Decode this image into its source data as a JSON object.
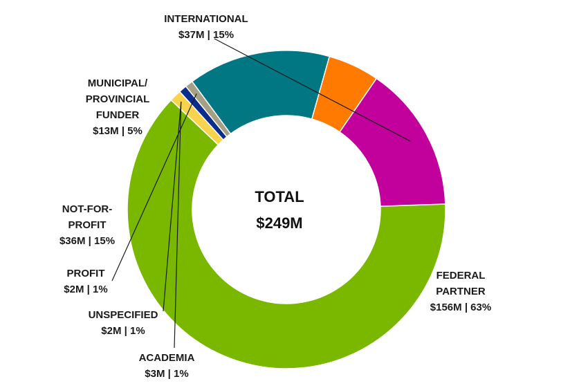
{
  "chart_data": {
    "type": "pie",
    "center_text": [
      "TOTAL",
      "$249M"
    ],
    "slices": [
      {
        "key": "federal",
        "label_lines": [
          "FEDERAL",
          "PARTNER"
        ],
        "value_text": "$156M | 63%",
        "value": 156,
        "color": "#7ab800"
      },
      {
        "key": "academia",
        "label_lines": [
          "ACADEMIA"
        ],
        "value_text": "$3M | 1%",
        "value": 3,
        "color": "#f7d44c"
      },
      {
        "key": "unspecified",
        "label_lines": [
          "UNSPECIFIED"
        ],
        "value_text": "$2M | 1%",
        "value": 2,
        "color": "#0a2d8c"
      },
      {
        "key": "profit",
        "label_lines": [
          "PROFIT"
        ],
        "value_text": "$2M | 1%",
        "value": 2,
        "color": "#a59f86"
      },
      {
        "key": "notforprofit",
        "label_lines": [
          "NOT-FOR-",
          "PROFIT"
        ],
        "value_text": "$36M | 15%",
        "value": 36,
        "color": "#007782"
      },
      {
        "key": "municipal",
        "label_lines": [
          "MUNICIPAL/",
          "PROVINCIAL",
          "FUNDER"
        ],
        "value_text": "$13M | 5%",
        "value": 13,
        "color": "#ff7a00"
      },
      {
        "key": "international",
        "label_lines": [
          "INTERNATIONAL"
        ],
        "value_text": "$37M | 15%",
        "value": 37,
        "color": "#c2009b"
      }
    ]
  }
}
